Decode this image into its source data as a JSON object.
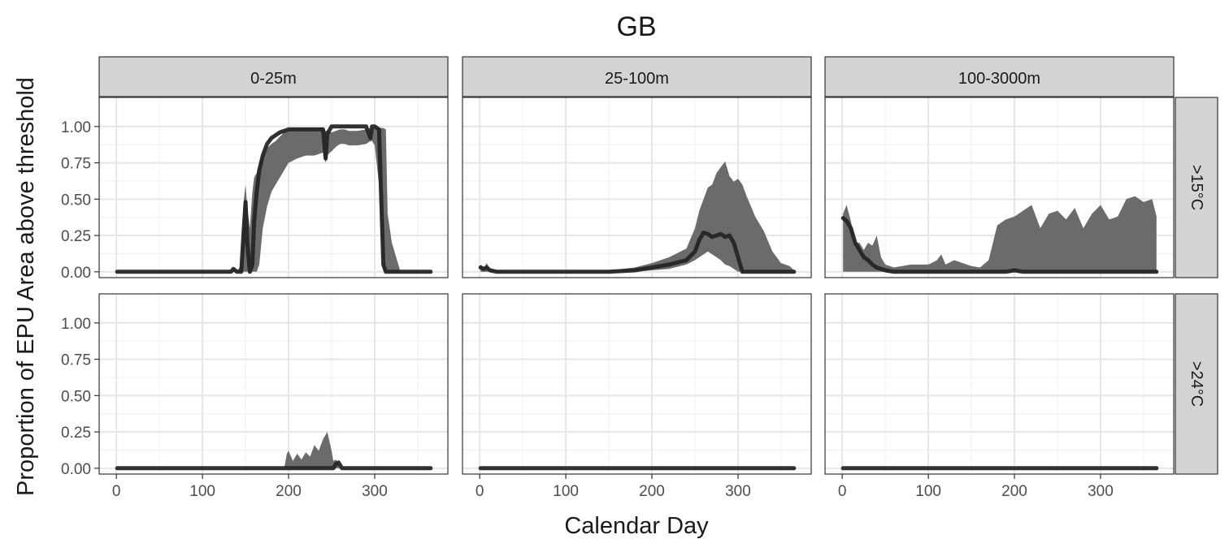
{
  "chart_data": {
    "type": "area",
    "title": "GB",
    "xlabel": "Calendar Day",
    "ylabel": "Proportion of EPU Area above threshold",
    "xlim": [
      -20,
      385
    ],
    "ylim": [
      -0.04,
      1.2
    ],
    "x_ticks": [
      0,
      100,
      200,
      300
    ],
    "x_tick_labels": [
      "0",
      "100",
      "200",
      "300"
    ],
    "y_ticks": [
      0,
      0.25,
      0.5,
      0.75,
      1
    ],
    "y_tick_labels": [
      "0.00",
      "0.25",
      "0.50",
      "0.75",
      "1.00"
    ],
    "grid": true,
    "columns": [
      "0-25m",
      "25-100m",
      "100-3000m"
    ],
    "rows": [
      ">15°C",
      ">24°C"
    ],
    "series_style": {
      "band_color": "#6b6b6b",
      "line_color": "#262626"
    },
    "panels": [
      {
        "row": ">15°C",
        "col": "0-25m",
        "x": [
          1,
          120,
          133,
          136,
          140,
          145,
          148,
          150,
          152,
          155,
          158,
          160,
          163,
          166,
          170,
          175,
          180,
          185,
          190,
          195,
          200,
          210,
          220,
          230,
          240,
          243,
          245,
          248,
          250,
          255,
          260,
          265,
          270,
          280,
          290,
          295,
          297,
          300,
          305,
          310,
          313,
          315,
          320,
          330,
          340,
          365
        ],
        "upper": [
          0,
          0,
          0,
          0.02,
          0,
          0.05,
          0.5,
          0.6,
          0.45,
          0.3,
          0.55,
          0.65,
          0.68,
          0.75,
          0.8,
          0.85,
          0.88,
          0.9,
          0.93,
          0.96,
          0.98,
          0.99,
          0.99,
          0.99,
          0.99,
          0.97,
          0.97,
          0.96,
          0.96,
          0.97,
          0.98,
          0.98,
          0.97,
          0.97,
          0.98,
          0.99,
          0.99,
          0.99,
          0.99,
          0.99,
          0.98,
          0.4,
          0.2,
          0,
          0,
          0
        ],
        "lower": [
          0,
          0,
          0,
          0,
          0,
          0,
          0,
          0,
          0,
          0,
          0,
          0,
          0,
          0.05,
          0.3,
          0.45,
          0.55,
          0.6,
          0.65,
          0.7,
          0.75,
          0.78,
          0.8,
          0.8,
          0.82,
          0.75,
          0.8,
          0.82,
          0.83,
          0.86,
          0.88,
          0.88,
          0.87,
          0.87,
          0.88,
          0.9,
          0.9,
          0.87,
          0.6,
          0.02,
          0,
          0,
          0,
          0,
          0,
          0
        ],
        "median": [
          0,
          0,
          0,
          0.02,
          0,
          0,
          0.3,
          0.48,
          0.2,
          0,
          0.05,
          0.35,
          0.55,
          0.7,
          0.8,
          0.88,
          0.92,
          0.94,
          0.96,
          0.97,
          0.98,
          0.98,
          0.98,
          0.98,
          0.98,
          0.78,
          0.95,
          0.98,
          1,
          1,
          1,
          1,
          1,
          1,
          1,
          0.92,
          1,
          1,
          0.98,
          0.05,
          0,
          0,
          0,
          0,
          0,
          0
        ]
      },
      {
        "row": ">15°C",
        "col": "25-100m",
        "x": [
          1,
          5,
          8,
          12,
          20,
          30,
          50,
          100,
          150,
          180,
          200,
          220,
          240,
          250,
          255,
          260,
          265,
          270,
          275,
          280,
          285,
          290,
          295,
          300,
          305,
          310,
          320,
          330,
          340,
          350,
          360,
          365
        ],
        "upper": [
          0.05,
          0.03,
          0.06,
          0.02,
          0.01,
          0,
          0,
          0,
          0.01,
          0.03,
          0.06,
          0.1,
          0.16,
          0.3,
          0.42,
          0.5,
          0.58,
          0.6,
          0.68,
          0.72,
          0.76,
          0.66,
          0.62,
          0.64,
          0.6,
          0.52,
          0.38,
          0.28,
          0.14,
          0.06,
          0.04,
          0.01
        ],
        "lower": [
          0,
          0,
          0,
          0,
          0,
          0,
          0,
          0,
          0,
          0,
          0.01,
          0.02,
          0.05,
          0.08,
          0.1,
          0.12,
          0.14,
          0.12,
          0.1,
          0.08,
          0.05,
          0.04,
          0.02,
          0,
          0,
          0,
          0,
          0,
          0,
          0,
          0,
          0
        ],
        "median": [
          0.03,
          0.02,
          0.03,
          0.01,
          0,
          0,
          0,
          0,
          0,
          0.01,
          0.03,
          0.05,
          0.08,
          0.14,
          0.22,
          0.27,
          0.26,
          0.24,
          0.25,
          0.26,
          0.24,
          0.25,
          0.2,
          0.1,
          0,
          0,
          0,
          0,
          0,
          0,
          0,
          0
        ]
      },
      {
        "row": ">15°C",
        "col": "100-3000m",
        "x": [
          1,
          5,
          10,
          15,
          20,
          25,
          30,
          35,
          40,
          45,
          50,
          60,
          80,
          100,
          110,
          115,
          120,
          130,
          140,
          150,
          160,
          170,
          180,
          190,
          200,
          210,
          220,
          230,
          240,
          250,
          260,
          270,
          280,
          290,
          300,
          310,
          320,
          330,
          340,
          350,
          360,
          365
        ],
        "upper": [
          0.4,
          0.46,
          0.35,
          0.2,
          0.2,
          0.15,
          0.2,
          0.18,
          0.25,
          0.1,
          0.05,
          0.03,
          0.05,
          0.05,
          0.08,
          0.12,
          0.05,
          0.08,
          0.06,
          0.04,
          0.03,
          0.08,
          0.32,
          0.36,
          0.38,
          0.42,
          0.46,
          0.3,
          0.4,
          0.42,
          0.36,
          0.44,
          0.3,
          0.4,
          0.46,
          0.36,
          0.38,
          0.5,
          0.52,
          0.48,
          0.5,
          0.38
        ],
        "lower": [
          0,
          0,
          0,
          0,
          0,
          0,
          0,
          0,
          0,
          0,
          0,
          0,
          0,
          0,
          0,
          0,
          0,
          0,
          0,
          0,
          0,
          0,
          0,
          0,
          0,
          0,
          0,
          0,
          0,
          0,
          0,
          0,
          0,
          0,
          0,
          0,
          0,
          0,
          0,
          0,
          0,
          0
        ],
        "median": [
          0.37,
          0.35,
          0.3,
          0.2,
          0.15,
          0.1,
          0.08,
          0.05,
          0.03,
          0.02,
          0.01,
          0,
          0,
          0,
          0,
          0,
          0,
          0,
          0,
          0,
          0,
          0,
          0,
          0,
          0.01,
          0,
          0,
          0,
          0,
          0,
          0,
          0,
          0,
          0,
          0,
          0,
          0,
          0,
          0,
          0,
          0,
          0
        ]
      },
      {
        "row": ">24°C",
        "col": "0-25m",
        "x": [
          1,
          195,
          198,
          200,
          205,
          210,
          215,
          220,
          225,
          230,
          235,
          240,
          245,
          250,
          252,
          255,
          258,
          260,
          262,
          265,
          365
        ],
        "upper": [
          0,
          0,
          0.1,
          0.12,
          0.05,
          0.1,
          0.06,
          0.11,
          0.08,
          0.16,
          0.12,
          0.2,
          0.25,
          0.12,
          0.05,
          0.06,
          0.03,
          0,
          0,
          0,
          0
        ],
        "lower": [
          0,
          0,
          0,
          0,
          0,
          0,
          0,
          0,
          0,
          0,
          0,
          0,
          0,
          0,
          0,
          0,
          0,
          0,
          0,
          0,
          0
        ],
        "median": [
          0,
          0,
          0,
          0,
          0,
          0,
          0,
          0,
          0,
          0,
          0,
          0,
          0,
          0,
          0,
          0.03,
          0.04,
          0.02,
          0,
          0,
          0
        ]
      },
      {
        "row": ">24°C",
        "col": "25-100m",
        "x": [
          1,
          365
        ],
        "upper": [
          0,
          0
        ],
        "lower": [
          0,
          0
        ],
        "median": [
          0,
          0
        ]
      },
      {
        "row": ">24°C",
        "col": "100-3000m",
        "x": [
          1,
          365
        ],
        "upper": [
          0,
          0
        ],
        "lower": [
          0,
          0
        ],
        "median": [
          0,
          0
        ]
      }
    ]
  }
}
